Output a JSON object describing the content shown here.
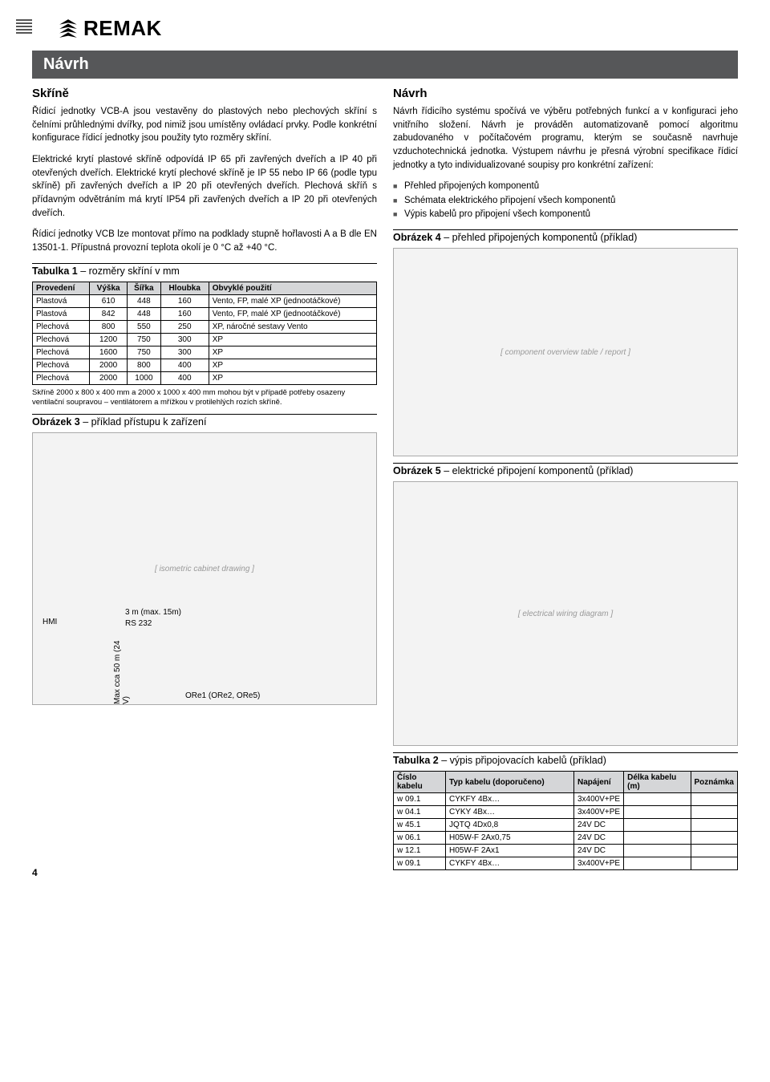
{
  "logo_text": "REMAK",
  "title": "Návrh",
  "left": {
    "h1": "Skříně",
    "p1": "Řídicí jednotky VCB-A jsou vestavěny do plastových nebo plechových skříní s čelními průhlednými dvířky, pod nimiž jsou umístěny ovládací prvky. Podle konkrétní konfigurace řídicí jednotky jsou použity tyto rozměry skříní.",
    "p2": "Elektrické krytí plastové skříně odpovídá IP 65 při zavřených dveřích a IP 40 při otevřených dveřích. Elektrické krytí plechové skříně je IP 55 nebo IP 66 (podle typu skříně) při zavřených dveřích a IP 20 při otevřených dveřích. Plechová skříň s přídavným odvětráním má krytí IP54 při zavřených dveřích a IP 20 při otevřených dveřích.",
    "p3": "Řídicí jednotky VCB lze montovat přímo na podklady stupně hořlavosti A a B dle EN 13501-1. Přípustná provozní teplota okolí je 0 °C až +40 °C.",
    "table1": {
      "title_strong": "Tabulka 1",
      "title_rest": " – rozměry skříní v mm",
      "columns": [
        "Provedení",
        "Výška",
        "Šířka",
        "Hloubka",
        "Obvyklé použití"
      ],
      "rows": [
        [
          "Plastová",
          "610",
          "448",
          "160",
          "Vento, FP, malé XP (jednootáčkové)"
        ],
        [
          "Plastová",
          "842",
          "448",
          "160",
          "Vento, FP, malé XP (jednootáčkové)"
        ],
        [
          "Plechová",
          "800",
          "550",
          "250",
          "XP, náročné sestavy Vento"
        ],
        [
          "Plechová",
          "1200",
          "750",
          "300",
          "XP"
        ],
        [
          "Plechová",
          "1600",
          "750",
          "300",
          "XP"
        ],
        [
          "Plechová",
          "2000",
          "800",
          "400",
          "XP"
        ],
        [
          "Plechová",
          "2000",
          "1000",
          "400",
          "XP"
        ]
      ],
      "note": "Skříně 2000 x 800 x 400 mm a 2000 x 1000 x 400 mm mohou být v případě potřeby osazeny ventilační soupravou – ventilátorem a mřížkou v protilehlých rozích skříně."
    },
    "fig3": {
      "title_strong": "Obrázek 3",
      "title_rest": " – příklad přístupu k zařízení",
      "hmi": "HMI",
      "cable_top": "3 m (max. 15m)",
      "rs232": "RS 232",
      "cable_left": "Max cca 50 m (24 V)",
      "ore": "ORe1 (ORe2, ORe5)"
    }
  },
  "right": {
    "h1": "Návrh",
    "p1": "Návrh řídicího systému spočívá ve výběru potřebných funkcí a v konfiguraci jeho vnitřního složení. Návrh je prováděn automatizovaně pomocí algoritmu zabudovaného v počítačovém programu, kterým se současně navrhuje vzduchotechnická jednotka. Výstupem návrhu je přesná výrobní specifikace řídicí jednotky a tyto individualizované soupisy pro konkrétní zařízení:",
    "bullets": [
      "Přehled připojených komponentů",
      "Schémata elektrického připojení všech komponentů",
      "Výpis kabelů pro připojení všech komponentů"
    ],
    "fig4": {
      "title_strong": "Obrázek 4",
      "title_rest": " – přehled připojených komponentů (příklad)"
    },
    "fig5": {
      "title_strong": "Obrázek 5",
      "title_rest": " – elektrické připojení komponentů (příklad)"
    },
    "table2": {
      "title_strong": "Tabulka 2",
      "title_rest": " – výpis připojovacích kabelů (příklad)",
      "columns": [
        "Číslo kabelu",
        "Typ kabelu (doporučeno)",
        "Napájení",
        "Délka kabelu (m)",
        "Poznámka"
      ],
      "rows": [
        [
          "w 09.1",
          "CYKFY 4Bx…",
          "3x400V+PE",
          "",
          ""
        ],
        [
          "w 04.1",
          "CYKY 4Bx…",
          "3x400V+PE",
          "",
          ""
        ],
        [
          "w 45.1",
          "JQTQ 4Dx0,8",
          "24V DC",
          "",
          ""
        ],
        [
          "w 06.1",
          "H05W-F 2Ax0,75",
          "24V DC",
          "",
          ""
        ],
        [
          "w 12.1",
          "H05W-F 2Ax1",
          "24V DC",
          "",
          ""
        ],
        [
          "w 09.1",
          "CYKFY 4Bx…",
          "3x400V+PE",
          "",
          ""
        ]
      ]
    }
  },
  "page_number": "4",
  "colors": {
    "title_bg": "#565759",
    "th_bg": "#d5d6d8"
  }
}
